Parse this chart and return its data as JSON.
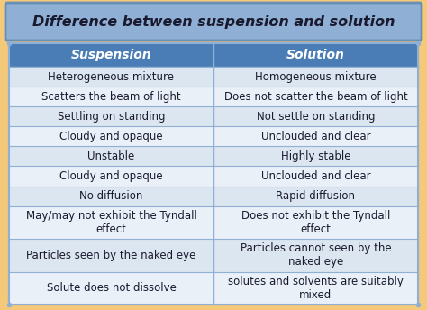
{
  "title": "Difference between suspension and solution",
  "col_headers": [
    "Suspension",
    "Solution"
  ],
  "rows": [
    [
      "Heterogeneous mixture",
      "Homogeneous mixture"
    ],
    [
      "Scatters the beam of light",
      "Does not scatter the beam of light"
    ],
    [
      "Settling on standing",
      "Not settle on standing"
    ],
    [
      "Cloudy and opaque",
      "Unclouded and clear"
    ],
    [
      "Unstable",
      "Highly stable"
    ],
    [
      "Cloudy and opaque",
      "Unclouded and clear"
    ],
    [
      "No diffusion",
      "Rapid diffusion"
    ],
    [
      "May/may not exhibit the Tyndall\neffect",
      "Does not exhibit the Tyndall\neffect"
    ],
    [
      "Particles seen by the naked eye",
      "Particles cannot seen by the\nnaked eye"
    ],
    [
      "Solute does not dissolve",
      "solutes and solvents are suitably\nmixed"
    ]
  ],
  "title_bg": "#8fafd4",
  "title_border": "#6a8fb5",
  "header_bg": "#4a7db5",
  "header_text_color": "#ffffff",
  "row_bg_light": "#dce6f1",
  "row_bg_lighter": "#eaf0f8",
  "cell_text_color": "#1a1a2e",
  "outer_bg": "#f5c97a",
  "table_border_color": "#8fafd4",
  "title_fontsize": 11.5,
  "header_fontsize": 10,
  "cell_fontsize": 8.5
}
